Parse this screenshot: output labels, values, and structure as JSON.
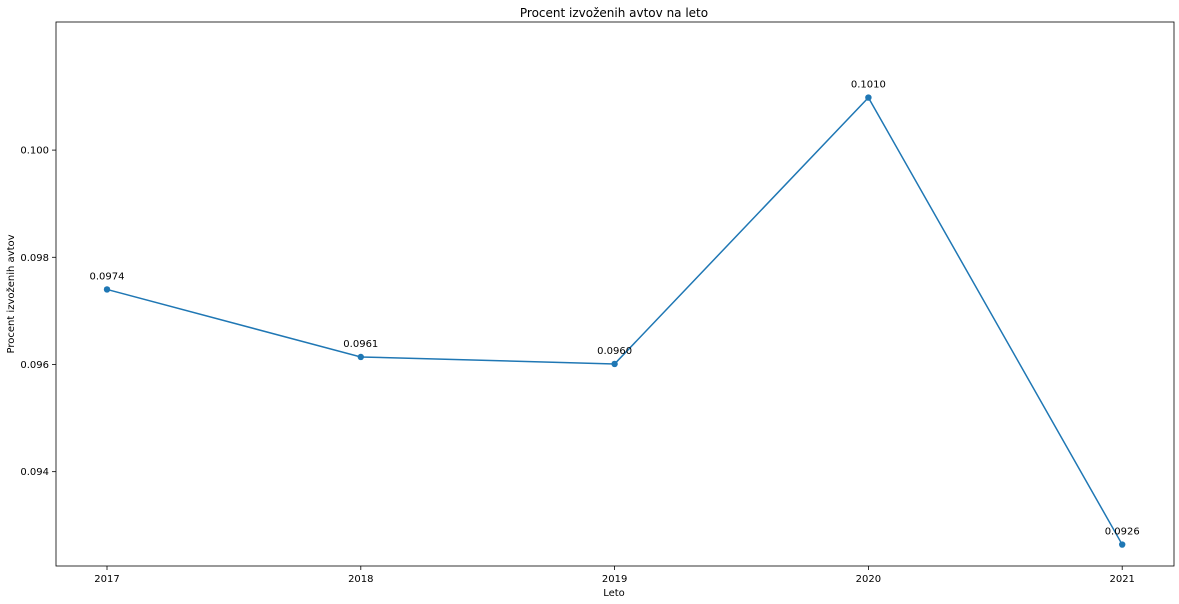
{
  "chart_data": {
    "type": "line",
    "title": "Procent izvoženih avtov na leto",
    "xlabel": "Leto",
    "ylabel": "Procent izvoženih avtov",
    "categories": [
      "2017",
      "2018",
      "2019",
      "2020",
      "2021"
    ],
    "series": [
      {
        "values": [
          0.0974,
          0.09614,
          0.09601,
          0.10098,
          0.09264
        ],
        "labels": [
          "0.0974",
          "0.0961",
          "0.0960",
          "0.1010",
          "0.0926"
        ],
        "color": "#1f77b4"
      }
    ],
    "yticks": [
      0.094,
      0.096,
      0.098,
      0.1
    ],
    "ytick_labels": [
      "0.094",
      "0.096",
      "0.098",
      "0.100"
    ],
    "ylim": [
      0.09224,
      0.10239
    ],
    "grid": false,
    "markers": "circle"
  }
}
